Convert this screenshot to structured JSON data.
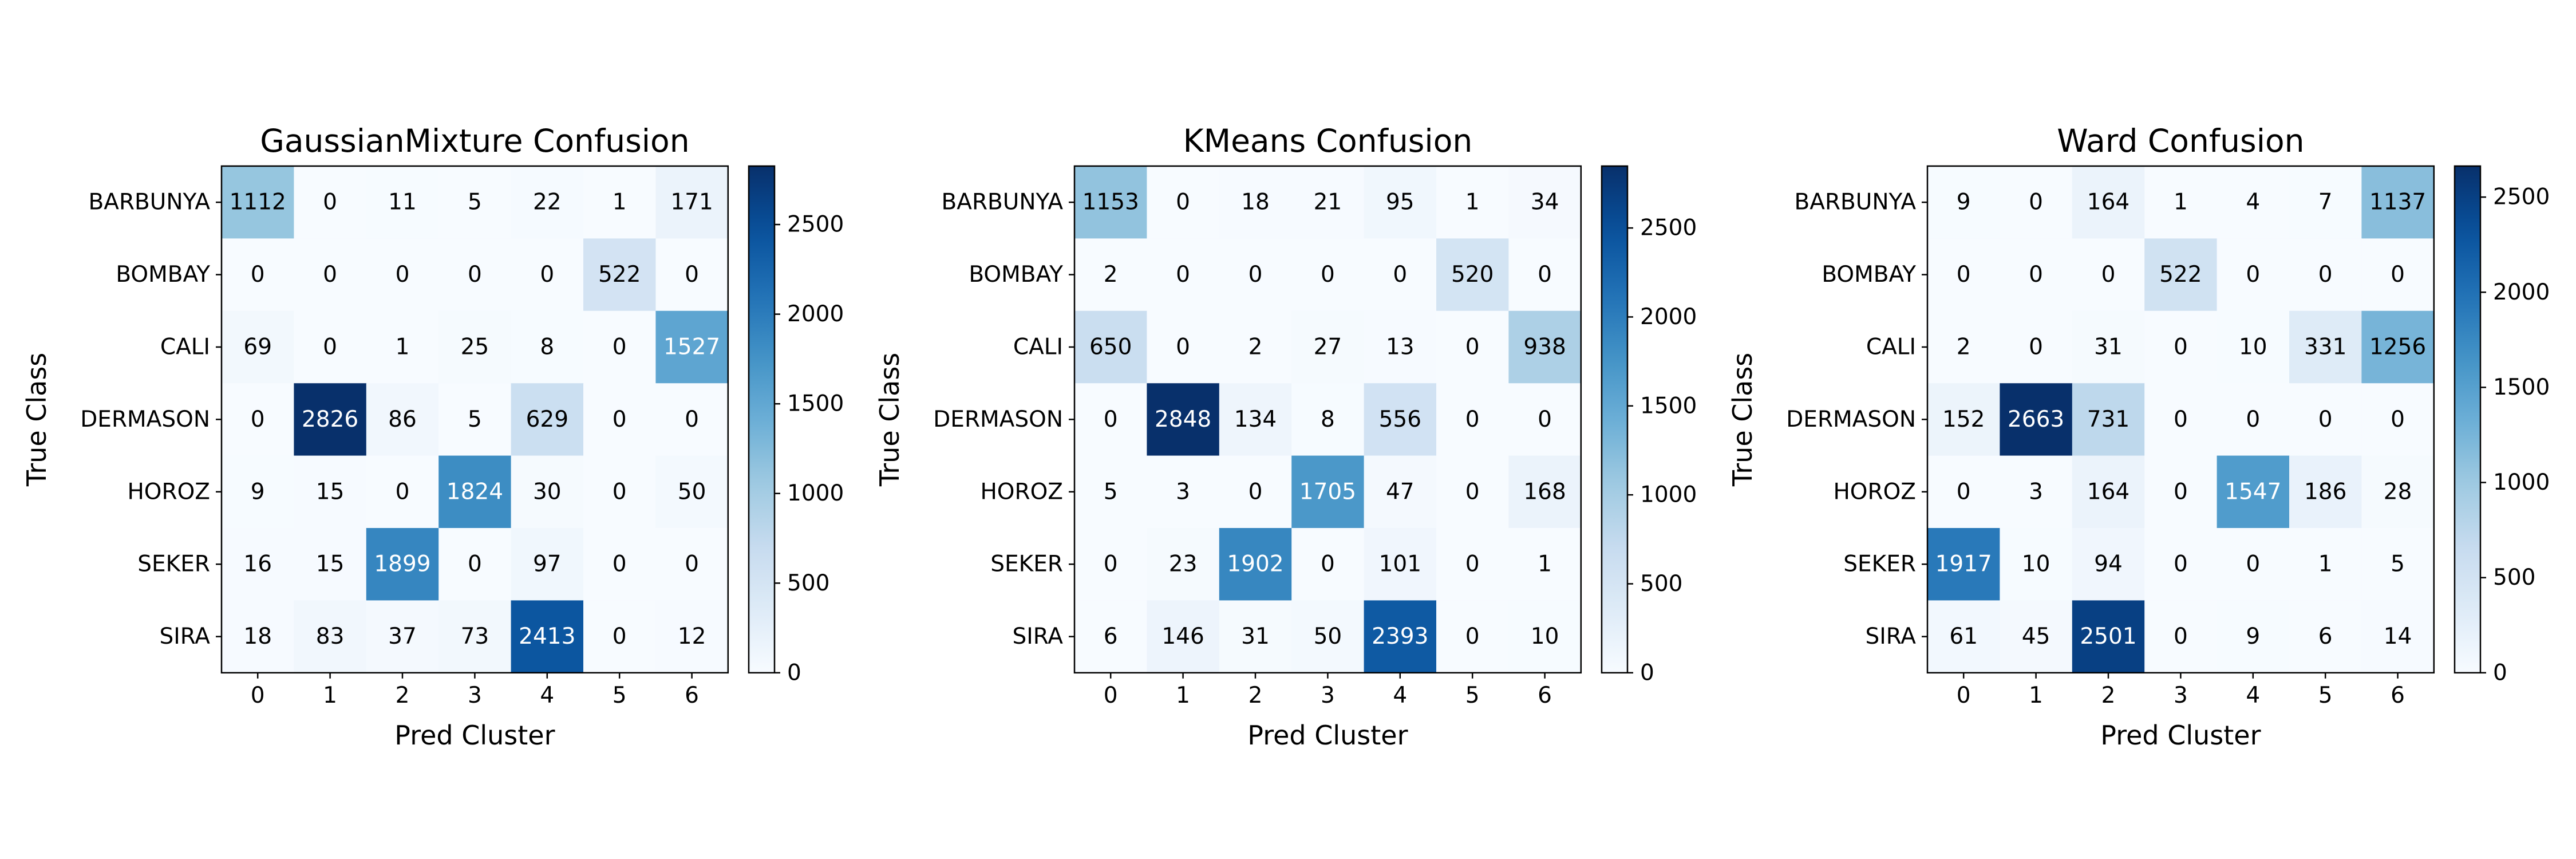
{
  "chart_data": [
    {
      "type": "heatmap",
      "title": "GaussianMixture Confusion",
      "xlabel": "Pred Cluster",
      "ylabel": "True Class",
      "x_categories": [
        "0",
        "1",
        "2",
        "3",
        "4",
        "5",
        "6"
      ],
      "y_categories": [
        "BARBUNYA",
        "BOMBAY",
        "CALI",
        "DERMASON",
        "HOROZ",
        "SEKER",
        "SIRA"
      ],
      "values": [
        [
          1112,
          0,
          11,
          5,
          22,
          1,
          171
        ],
        [
          0,
          0,
          0,
          0,
          0,
          522,
          0
        ],
        [
          69,
          0,
          1,
          25,
          8,
          0,
          1527
        ],
        [
          0,
          2826,
          86,
          5,
          629,
          0,
          0
        ],
        [
          9,
          15,
          0,
          1824,
          30,
          0,
          50
        ],
        [
          16,
          15,
          1899,
          0,
          97,
          0,
          0
        ],
        [
          18,
          83,
          37,
          73,
          2413,
          0,
          12
        ]
      ],
      "colorscale": "Blues",
      "colorbar_ticks": [
        "0",
        "500",
        "1000",
        "1500",
        "2000",
        "2500"
      ],
      "colorbar_range": [
        0,
        2826
      ]
    },
    {
      "type": "heatmap",
      "title": "KMeans Confusion",
      "xlabel": "Pred Cluster",
      "ylabel": "True Class",
      "x_categories": [
        "0",
        "1",
        "2",
        "3",
        "4",
        "5",
        "6"
      ],
      "y_categories": [
        "BARBUNYA",
        "BOMBAY",
        "CALI",
        "DERMASON",
        "HOROZ",
        "SEKER",
        "SIRA"
      ],
      "values": [
        [
          1153,
          0,
          18,
          21,
          95,
          1,
          34
        ],
        [
          2,
          0,
          0,
          0,
          0,
          520,
          0
        ],
        [
          650,
          0,
          2,
          27,
          13,
          0,
          938
        ],
        [
          0,
          2848,
          134,
          8,
          556,
          0,
          0
        ],
        [
          5,
          3,
          0,
          1705,
          47,
          0,
          168
        ],
        [
          0,
          23,
          1902,
          0,
          101,
          0,
          1
        ],
        [
          6,
          146,
          31,
          50,
          2393,
          0,
          10
        ]
      ],
      "colorscale": "Blues",
      "colorbar_ticks": [
        "0",
        "500",
        "1000",
        "1500",
        "2000",
        "2500"
      ],
      "colorbar_range": [
        0,
        2848
      ]
    },
    {
      "type": "heatmap",
      "title": "Ward Confusion",
      "xlabel": "Pred Cluster",
      "ylabel": "True Class",
      "x_categories": [
        "0",
        "1",
        "2",
        "3",
        "4",
        "5",
        "6"
      ],
      "y_categories": [
        "BARBUNYA",
        "BOMBAY",
        "CALI",
        "DERMASON",
        "HOROZ",
        "SEKER",
        "SIRA"
      ],
      "values": [
        [
          9,
          0,
          164,
          1,
          4,
          7,
          1137
        ],
        [
          0,
          0,
          0,
          522,
          0,
          0,
          0
        ],
        [
          2,
          0,
          31,
          0,
          10,
          331,
          1256
        ],
        [
          152,
          2663,
          731,
          0,
          0,
          0,
          0
        ],
        [
          0,
          3,
          164,
          0,
          1547,
          186,
          28
        ],
        [
          1917,
          10,
          94,
          0,
          0,
          1,
          5
        ],
        [
          61,
          45,
          2501,
          0,
          9,
          6,
          14
        ]
      ],
      "colorscale": "Blues",
      "colorbar_ticks": [
        "0",
        "500",
        "1000",
        "1500",
        "2000",
        "2500"
      ],
      "colorbar_range": [
        0,
        2663
      ]
    }
  ]
}
